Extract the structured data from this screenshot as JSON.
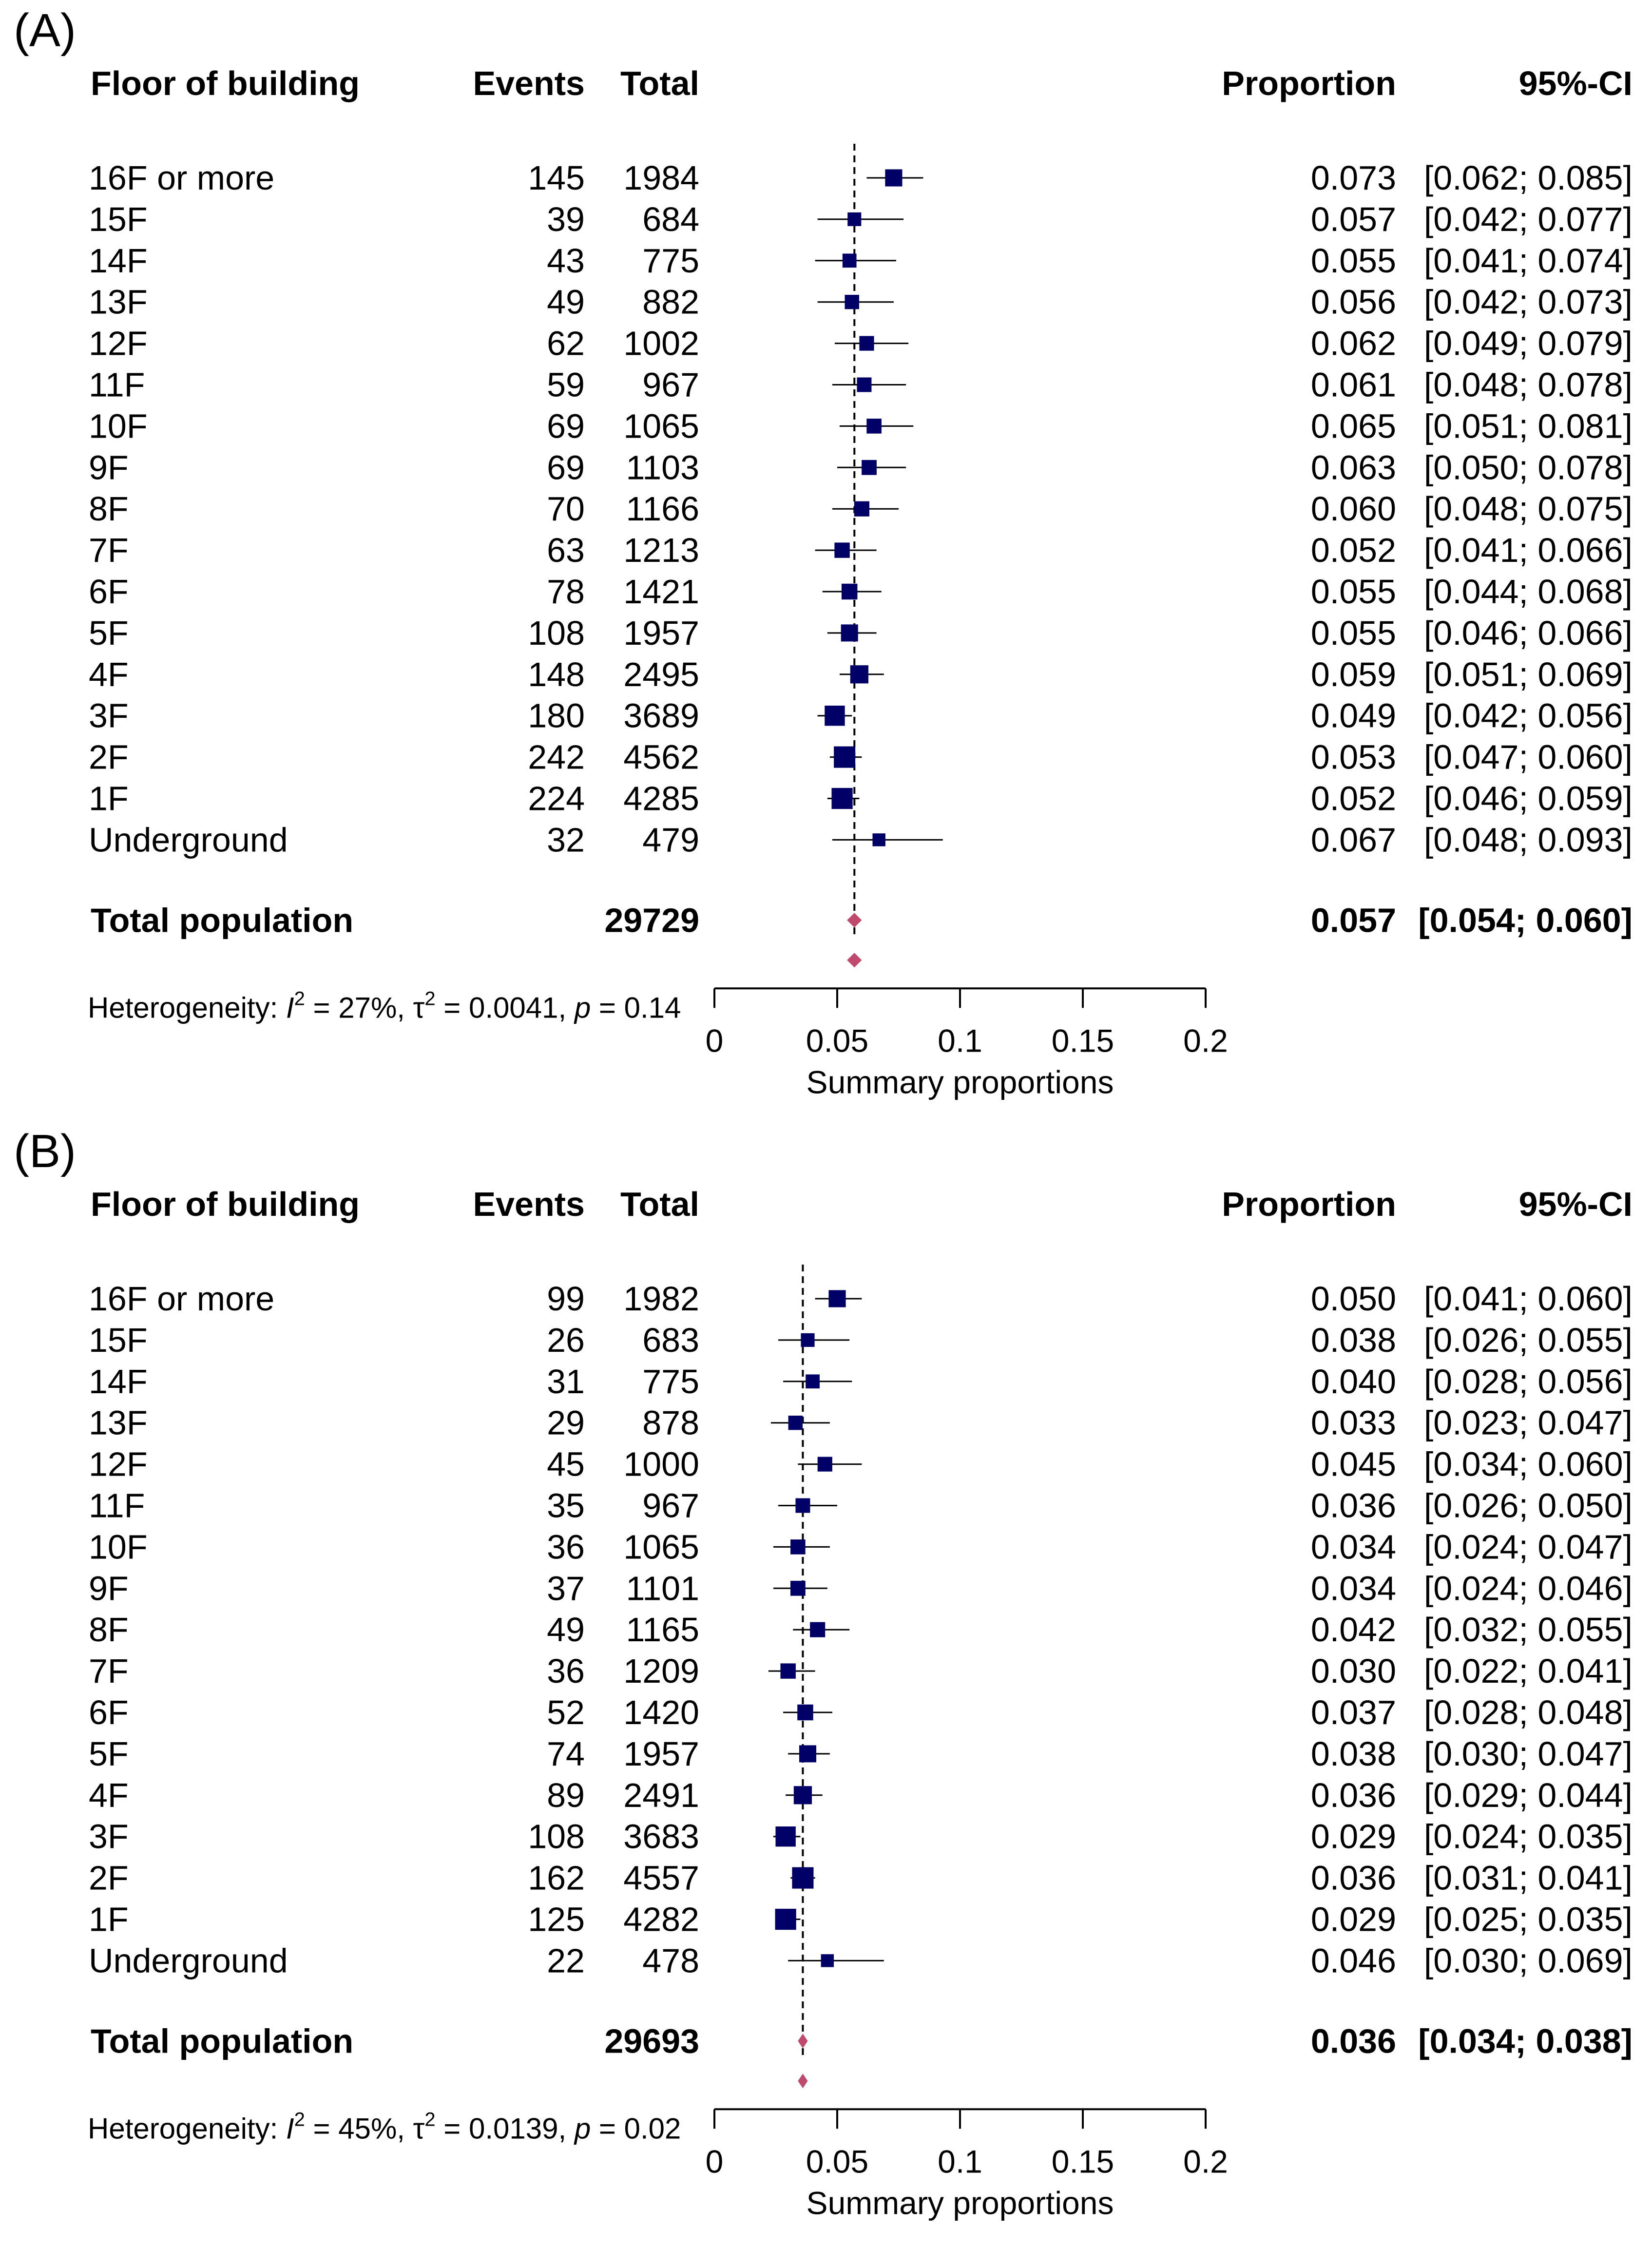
{
  "colors": {
    "square": "#000066",
    "diamond": "#C04A6E",
    "line": "#000000"
  },
  "chart_data": [
    {
      "type": "forest",
      "panel_label": "(A)",
      "columns": {
        "floor": "Floor of building",
        "events": "Events",
        "total": "Total",
        "proportion": "Proportion",
        "ci": "95%-CI"
      },
      "rows": [
        {
          "floor": "16F or more",
          "events": "145",
          "total": "1984",
          "proportion": "0.073",
          "ci": "[0.062; 0.085]",
          "p": 0.073,
          "lo": 0.062,
          "hi": 0.085
        },
        {
          "floor": "15F",
          "events": "39",
          "total": "684",
          "proportion": "0.057",
          "ci": "[0.042; 0.077]",
          "p": 0.057,
          "lo": 0.042,
          "hi": 0.077
        },
        {
          "floor": "14F",
          "events": "43",
          "total": "775",
          "proportion": "0.055",
          "ci": "[0.041; 0.074]",
          "p": 0.055,
          "lo": 0.041,
          "hi": 0.074
        },
        {
          "floor": "13F",
          "events": "49",
          "total": "882",
          "proportion": "0.056",
          "ci": "[0.042; 0.073]",
          "p": 0.056,
          "lo": 0.042,
          "hi": 0.073
        },
        {
          "floor": "12F",
          "events": "62",
          "total": "1002",
          "proportion": "0.062",
          "ci": "[0.049; 0.079]",
          "p": 0.062,
          "lo": 0.049,
          "hi": 0.079
        },
        {
          "floor": "11F",
          "events": "59",
          "total": "967",
          "proportion": "0.061",
          "ci": "[0.048; 0.078]",
          "p": 0.061,
          "lo": 0.048,
          "hi": 0.078
        },
        {
          "floor": "10F",
          "events": "69",
          "total": "1065",
          "proportion": "0.065",
          "ci": "[0.051; 0.081]",
          "p": 0.065,
          "lo": 0.051,
          "hi": 0.081
        },
        {
          "floor": "9F",
          "events": "69",
          "total": "1103",
          "proportion": "0.063",
          "ci": "[0.050; 0.078]",
          "p": 0.063,
          "lo": 0.05,
          "hi": 0.078
        },
        {
          "floor": "8F",
          "events": "70",
          "total": "1166",
          "proportion": "0.060",
          "ci": "[0.048; 0.075]",
          "p": 0.06,
          "lo": 0.048,
          "hi": 0.075
        },
        {
          "floor": "7F",
          "events": "63",
          "total": "1213",
          "proportion": "0.052",
          "ci": "[0.041; 0.066]",
          "p": 0.052,
          "lo": 0.041,
          "hi": 0.066
        },
        {
          "floor": "6F",
          "events": "78",
          "total": "1421",
          "proportion": "0.055",
          "ci": "[0.044; 0.068]",
          "p": 0.055,
          "lo": 0.044,
          "hi": 0.068
        },
        {
          "floor": "5F",
          "events": "108",
          "total": "1957",
          "proportion": "0.055",
          "ci": "[0.046; 0.066]",
          "p": 0.055,
          "lo": 0.046,
          "hi": 0.066
        },
        {
          "floor": "4F",
          "events": "148",
          "total": "2495",
          "proportion": "0.059",
          "ci": "[0.051; 0.069]",
          "p": 0.059,
          "lo": 0.051,
          "hi": 0.069
        },
        {
          "floor": "3F",
          "events": "180",
          "total": "3689",
          "proportion": "0.049",
          "ci": "[0.042; 0.056]",
          "p": 0.049,
          "lo": 0.042,
          "hi": 0.056
        },
        {
          "floor": "2F",
          "events": "242",
          "total": "4562",
          "proportion": "0.053",
          "ci": "[0.047; 0.060]",
          "p": 0.053,
          "lo": 0.047,
          "hi": 0.06
        },
        {
          "floor": "1F",
          "events": "224",
          "total": "4285",
          "proportion": "0.052",
          "ci": "[0.046; 0.059]",
          "p": 0.052,
          "lo": 0.046,
          "hi": 0.059
        },
        {
          "floor": "Underground",
          "events": "32",
          "total": "479",
          "proportion": "0.067",
          "ci": "[0.048; 0.093]",
          "p": 0.067,
          "lo": 0.048,
          "hi": 0.093
        }
      ],
      "summary": {
        "floor": "Total population",
        "total": "29729",
        "proportion": "0.057",
        "ci": "[0.054; 0.060]",
        "p": 0.057,
        "lo": 0.054,
        "hi": 0.06
      },
      "heterogeneity": {
        "prefix": "Heterogeneity: ",
        "i2_symbol": "I",
        "i2_sup": "2",
        "i2_value": " = 27%, ",
        "tau_symbol": "τ",
        "tau_sup": "2",
        "tau_value": " = 0.0041, ",
        "p_symbol": "p",
        "p_value": " = 0.14"
      },
      "xaxis": {
        "label": "Summary proportions",
        "ticks": [
          0,
          0.05,
          0.1,
          0.15,
          0.2
        ],
        "tick_labels": [
          "0",
          "0.05",
          "0.1",
          "0.15",
          "0.2"
        ],
        "range": [
          0,
          0.2
        ]
      }
    },
    {
      "type": "forest",
      "panel_label": "(B)",
      "columns": {
        "floor": "Floor of building",
        "events": "Events",
        "total": "Total",
        "proportion": "Proportion",
        "ci": "95%-CI"
      },
      "rows": [
        {
          "floor": "16F or more",
          "events": "99",
          "total": "1982",
          "proportion": "0.050",
          "ci": "[0.041; 0.060]",
          "p": 0.05,
          "lo": 0.041,
          "hi": 0.06
        },
        {
          "floor": "15F",
          "events": "26",
          "total": "683",
          "proportion": "0.038",
          "ci": "[0.026; 0.055]",
          "p": 0.038,
          "lo": 0.026,
          "hi": 0.055
        },
        {
          "floor": "14F",
          "events": "31",
          "total": "775",
          "proportion": "0.040",
          "ci": "[0.028; 0.056]",
          "p": 0.04,
          "lo": 0.028,
          "hi": 0.056
        },
        {
          "floor": "13F",
          "events": "29",
          "total": "878",
          "proportion": "0.033",
          "ci": "[0.023; 0.047]",
          "p": 0.033,
          "lo": 0.023,
          "hi": 0.047
        },
        {
          "floor": "12F",
          "events": "45",
          "total": "1000",
          "proportion": "0.045",
          "ci": "[0.034; 0.060]",
          "p": 0.045,
          "lo": 0.034,
          "hi": 0.06
        },
        {
          "floor": "11F",
          "events": "35",
          "total": "967",
          "proportion": "0.036",
          "ci": "[0.026; 0.050]",
          "p": 0.036,
          "lo": 0.026,
          "hi": 0.05
        },
        {
          "floor": "10F",
          "events": "36",
          "total": "1065",
          "proportion": "0.034",
          "ci": "[0.024; 0.047]",
          "p": 0.034,
          "lo": 0.024,
          "hi": 0.047
        },
        {
          "floor": "9F",
          "events": "37",
          "total": "1101",
          "proportion": "0.034",
          "ci": "[0.024; 0.046]",
          "p": 0.034,
          "lo": 0.024,
          "hi": 0.046
        },
        {
          "floor": "8F",
          "events": "49",
          "total": "1165",
          "proportion": "0.042",
          "ci": "[0.032; 0.055]",
          "p": 0.042,
          "lo": 0.032,
          "hi": 0.055
        },
        {
          "floor": "7F",
          "events": "36",
          "total": "1209",
          "proportion": "0.030",
          "ci": "[0.022; 0.041]",
          "p": 0.03,
          "lo": 0.022,
          "hi": 0.041
        },
        {
          "floor": "6F",
          "events": "52",
          "total": "1420",
          "proportion": "0.037",
          "ci": "[0.028; 0.048]",
          "p": 0.037,
          "lo": 0.028,
          "hi": 0.048
        },
        {
          "floor": "5F",
          "events": "74",
          "total": "1957",
          "proportion": "0.038",
          "ci": "[0.030; 0.047]",
          "p": 0.038,
          "lo": 0.03,
          "hi": 0.047
        },
        {
          "floor": "4F",
          "events": "89",
          "total": "2491",
          "proportion": "0.036",
          "ci": "[0.029; 0.044]",
          "p": 0.036,
          "lo": 0.029,
          "hi": 0.044
        },
        {
          "floor": "3F",
          "events": "108",
          "total": "3683",
          "proportion": "0.029",
          "ci": "[0.024; 0.035]",
          "p": 0.029,
          "lo": 0.024,
          "hi": 0.035
        },
        {
          "floor": "2F",
          "events": "162",
          "total": "4557",
          "proportion": "0.036",
          "ci": "[0.031; 0.041]",
          "p": 0.036,
          "lo": 0.031,
          "hi": 0.041
        },
        {
          "floor": "1F",
          "events": "125",
          "total": "4282",
          "proportion": "0.029",
          "ci": "[0.025; 0.035]",
          "p": 0.029,
          "lo": 0.025,
          "hi": 0.035
        },
        {
          "floor": "Underground",
          "events": "22",
          "total": "478",
          "proportion": "0.046",
          "ci": "[0.030; 0.069]",
          "p": 0.046,
          "lo": 0.03,
          "hi": 0.069
        }
      ],
      "summary": {
        "floor": "Total population",
        "total": "29693",
        "proportion": "0.036",
        "ci": "[0.034; 0.038]",
        "p": 0.036,
        "lo": 0.034,
        "hi": 0.038
      },
      "heterogeneity": {
        "prefix": "Heterogeneity: ",
        "i2_symbol": "I",
        "i2_sup": "2",
        "i2_value": " = 45%, ",
        "tau_symbol": "τ",
        "tau_sup": "2",
        "tau_value": " = 0.0139, ",
        "p_symbol": "p",
        "p_value": " = 0.02"
      },
      "xaxis": {
        "label": "Summary proportions",
        "ticks": [
          0,
          0.05,
          0.1,
          0.15,
          0.2
        ],
        "tick_labels": [
          "0",
          "0.05",
          "0.1",
          "0.15",
          "0.2"
        ],
        "range": [
          0,
          0.2
        ]
      }
    }
  ]
}
